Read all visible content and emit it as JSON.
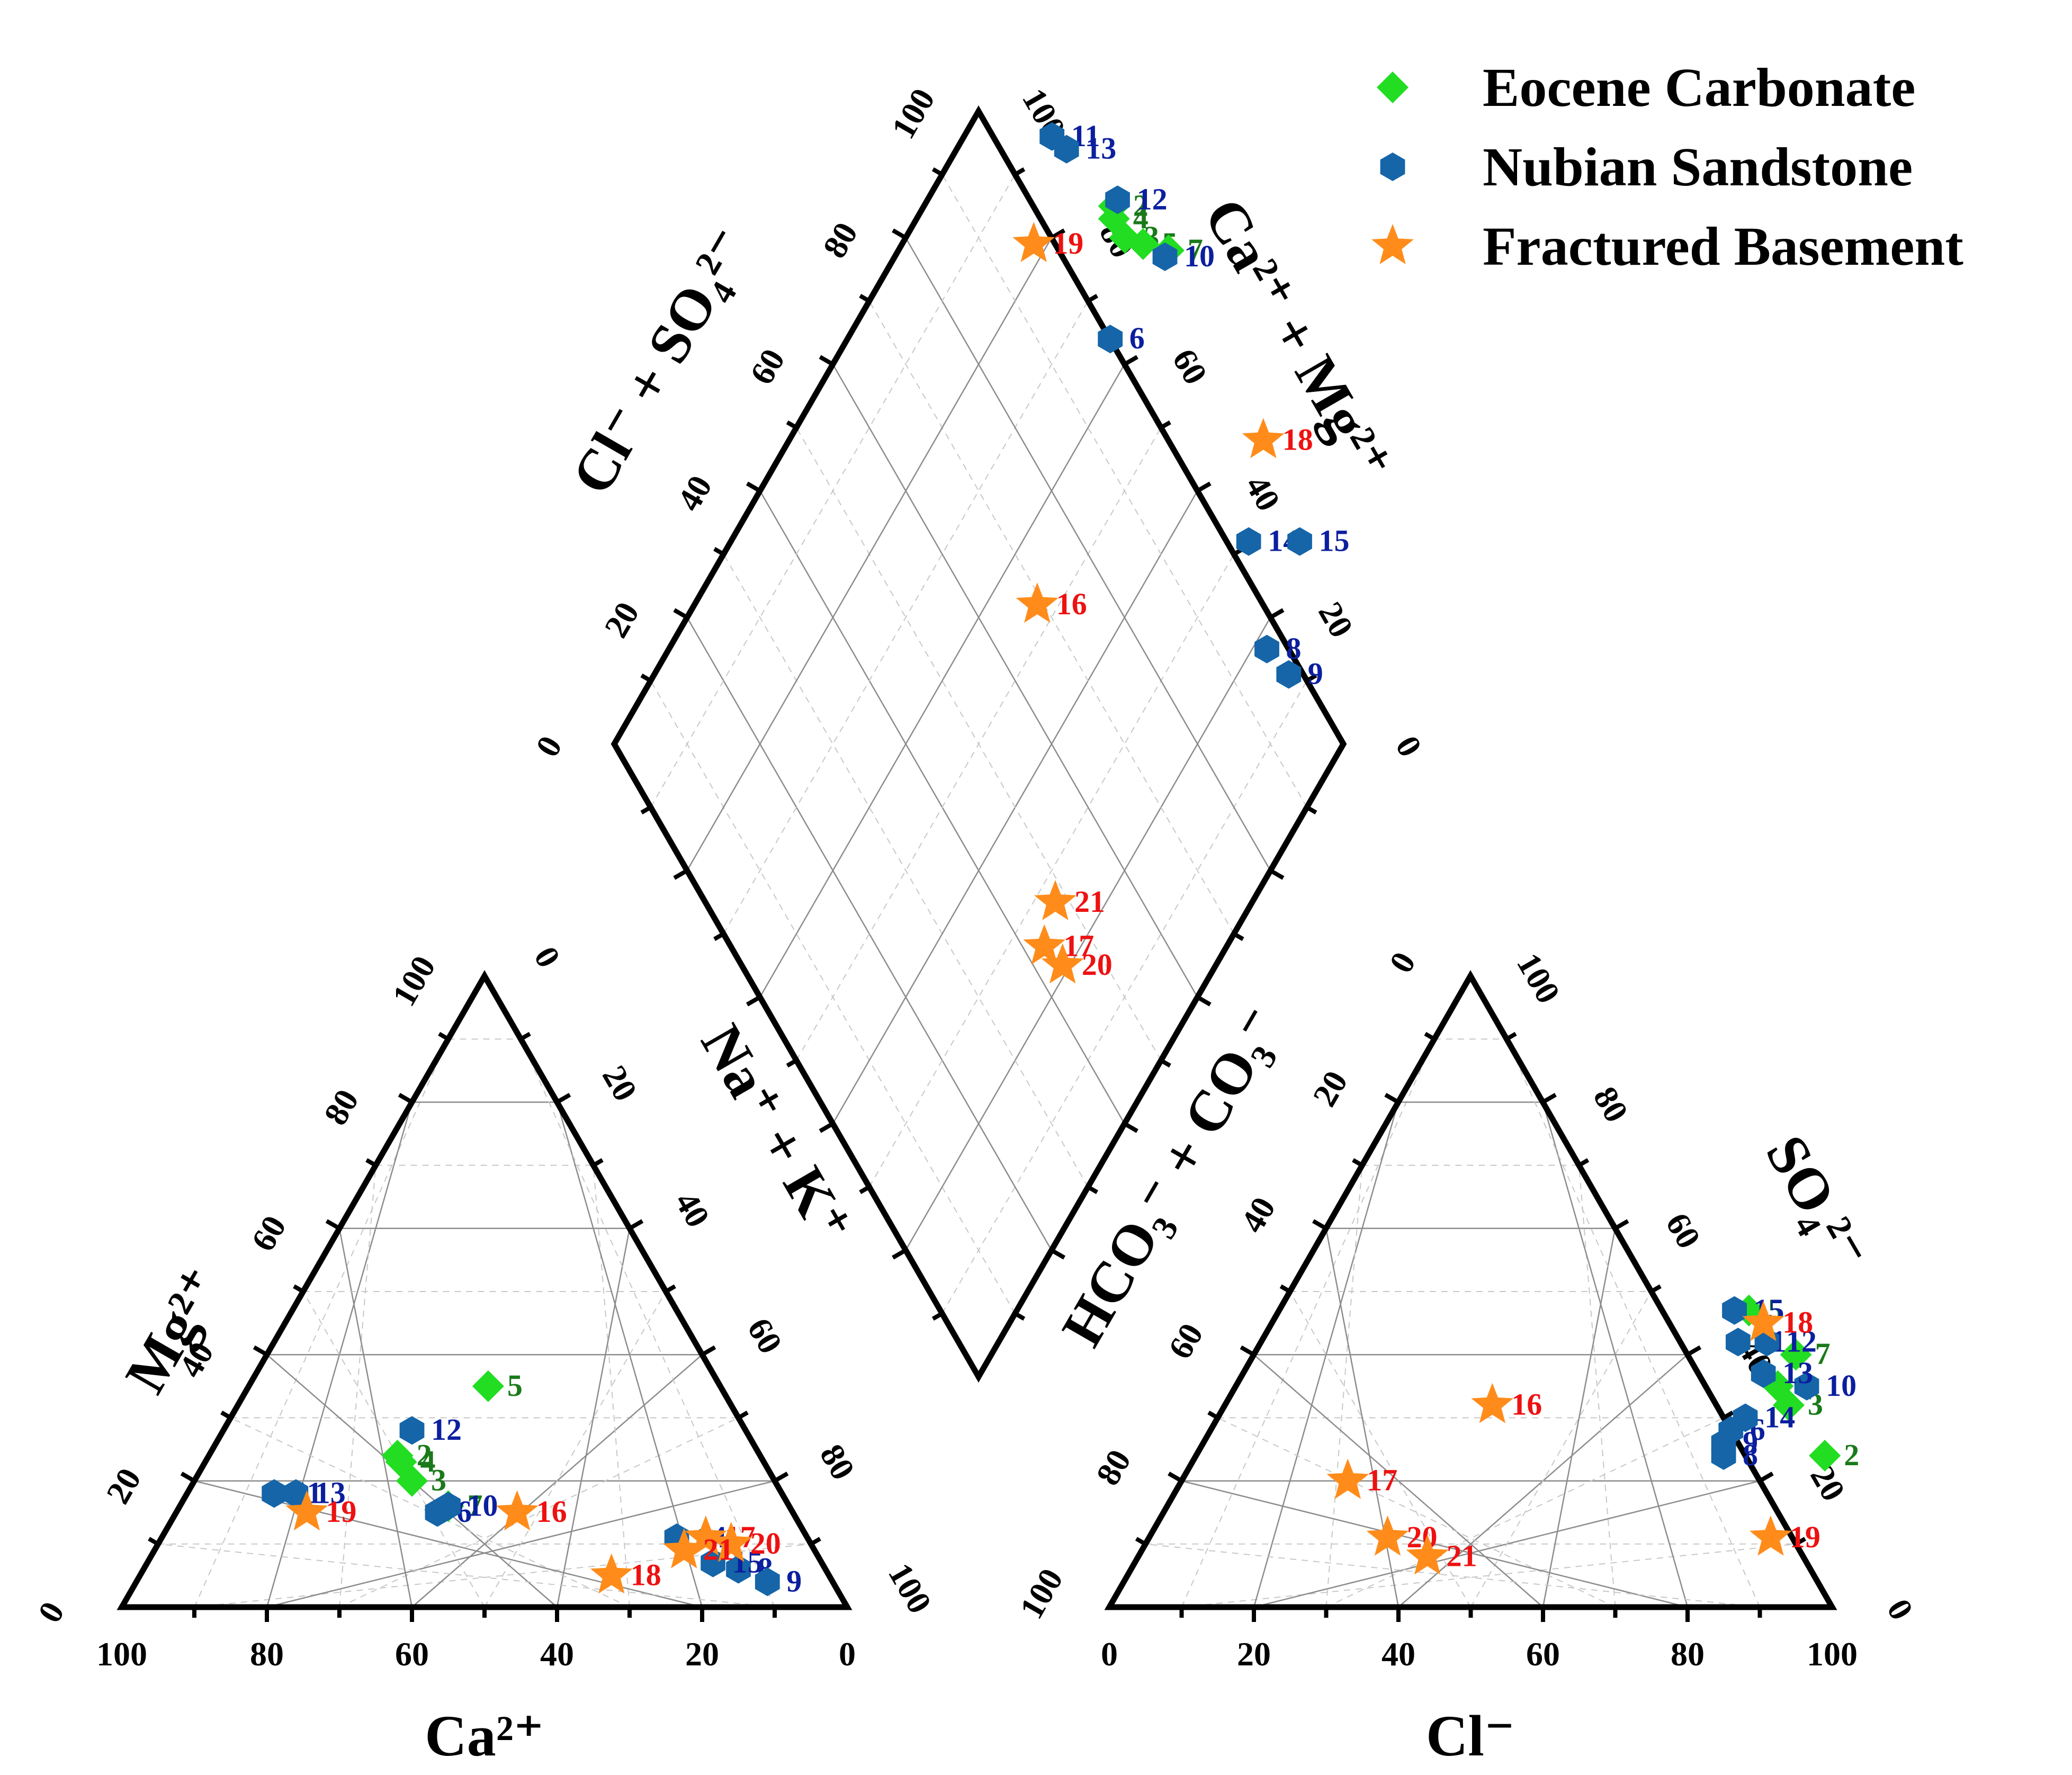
{
  "chart_data": {
    "type": "scatter",
    "title": "",
    "legend_position": "top-right",
    "colors": {
      "Eocene Carbonate": "#22dd22",
      "Nubian Sandstone": "#1565a8",
      "Fractured Basement": "#ff8c1a"
    },
    "label_colors": {
      "Eocene Carbonate": "#1a7a1a",
      "Nubian Sandstone": "#0b1f9e",
      "Fractured Basement": "#ee1111"
    },
    "markers": {
      "Eocene Carbonate": "diamond",
      "Nubian Sandstone": "hexagon",
      "Fractured Basement": "star"
    },
    "axes": {
      "cation_triangle": {
        "left_label": "Mg²⁺",
        "right_label": "Na⁺ + K⁺",
        "bottom_label": "Ca²⁺"
      },
      "anion_triangle": {
        "left_label": "HCO₃⁻ + CO₃⁻",
        "right_label": "SO₄²⁻",
        "bottom_label": "Cl⁻"
      },
      "diamond": {
        "upper_left_label": "Cl⁻ + SO₄²⁻",
        "upper_right_label": "Ca²⁺ + Mg²⁺"
      },
      "tick_values": [
        "0",
        "20",
        "40",
        "60",
        "80",
        "100"
      ]
    },
    "series": [
      {
        "name": "Eocene Carbonate",
        "points": [
          {
            "id": "2",
            "ca": 50,
            "mg": 24,
            "cl": 87,
            "so4": 24
          },
          {
            "id": "3",
            "ca": 50,
            "mg": 20,
            "cl": 78,
            "so4": 32
          },
          {
            "id": "4",
            "ca": 50,
            "mg": 23,
            "cl": 75,
            "so4": 35
          },
          {
            "id": "5",
            "ca": 32,
            "mg": 35,
            "cl": 65,
            "so4": 47
          },
          {
            "id": "7",
            "ca": 47,
            "mg": 16,
            "cl": 75,
            "so4": 40
          }
        ]
      },
      {
        "name": "Nubian Sandstone",
        "points": [
          {
            "id": "6",
            "ca": 49,
            "mg": 15,
            "cl": 72,
            "so4": 28
          },
          {
            "id": "8",
            "ca": 12,
            "mg": 6,
            "cl": 73,
            "so4": 24
          },
          {
            "id": "9",
            "ca": 9,
            "mg": 4,
            "cl": 72,
            "so4": 26
          },
          {
            "id": "10",
            "ca": 47,
            "mg": 16,
            "cl": 79,
            "so4": 35
          },
          {
            "id": "11",
            "ca": 70,
            "mg": 18,
            "cl": 66,
            "so4": 42
          },
          {
            "id": "12",
            "ca": 46,
            "mg": 28,
            "cl": 70,
            "so4": 42
          },
          {
            "id": "13",
            "ca": 67,
            "mg": 18,
            "cl": 72,
            "so4": 37
          },
          {
            "id": "14",
            "ca": 18,
            "mg": 11,
            "cl": 73,
            "so4": 30
          },
          {
            "id": "15",
            "ca": 15,
            "mg": 7,
            "cl": 63,
            "so4": 47
          }
        ]
      },
      {
        "name": "Fractured Basement",
        "points": [
          {
            "id": "16",
            "ca": 38,
            "mg": 15,
            "cl": 37,
            "so4": 32
          },
          {
            "id": "17",
            "ca": 14,
            "mg": 11,
            "cl": 23,
            "so4": 20
          },
          {
            "id": "18",
            "ca": 30,
            "mg": 5,
            "cl": 68,
            "so4": 45
          },
          {
            "id": "19",
            "ca": 67,
            "mg": 15,
            "cl": 86,
            "so4": 11
          },
          {
            "id": "20",
            "ca": 11,
            "mg": 10,
            "cl": 33,
            "so4": 11
          },
          {
            "id": "21",
            "ca": 18,
            "mg": 9,
            "cl": 40,
            "so4": 8
          }
        ]
      }
    ]
  }
}
